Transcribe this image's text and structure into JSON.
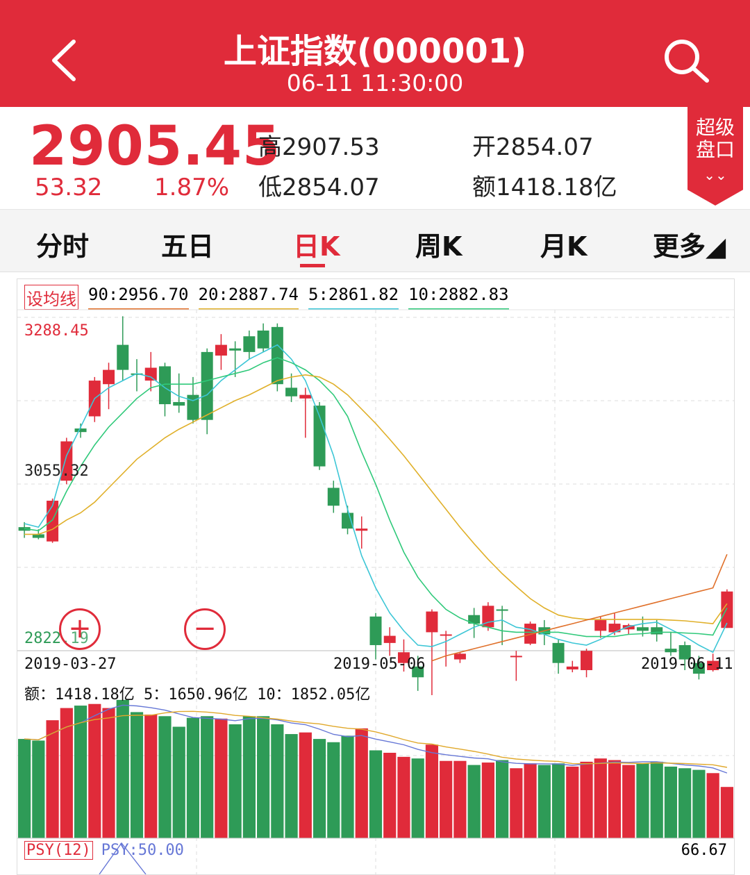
{
  "header": {
    "title": "上证指数(000001)",
    "subtitle": "06-11 11:30:00",
    "back_icon": "chevron-left-icon",
    "search_icon": "search-icon"
  },
  "quote": {
    "price": "2905.45",
    "change": "53.32",
    "change_pct": "1.87%",
    "high_label": "高",
    "high": "2907.53",
    "low_label": "低",
    "low": "2854.07",
    "open_label": "开",
    "open": "2854.07",
    "amount_label": "额",
    "amount": "1418.18亿",
    "badge_line1": "超级",
    "badge_line2": "盘口",
    "badge_arrow": "⌄⌄"
  },
  "tabs": [
    {
      "label": "分时"
    },
    {
      "label": "五日"
    },
    {
      "label": "日K"
    },
    {
      "label": "周K"
    },
    {
      "label": "月K"
    },
    {
      "label": "更多◢"
    }
  ],
  "active_tab": "日K",
  "chart": {
    "set_ma_label": "设均线",
    "ma": [
      {
        "label": "90:2956.70",
        "color": "#e0702a"
      },
      {
        "label": "20:2887.74",
        "color": "#e0b02a"
      },
      {
        "label": "5:2861.82",
        "color": "#3cc6d6"
      },
      {
        "label": "10:2882.83",
        "color": "#2fc97a"
      }
    ],
    "y_top": "3288.45",
    "y_mid": "3055.32",
    "y_bottom": "2822.19",
    "dates": [
      "2019-03-27",
      "2019-05-06",
      "2019-06-11"
    ],
    "volume_legend": "额：1418.18亿 5：1650.96亿 10：1852.05亿",
    "psy_label": "PSY(12)",
    "psy_value": "PSY:50.00",
    "psy_right": "66.67",
    "up_color": "#e02b3a",
    "down_color": "#2e9b57"
  },
  "chart_data": {
    "type": "candlestick",
    "y_range": [
      2822.19,
      3288.45
    ],
    "candles": [
      [
        2995,
        2990,
        3002,
        2980
      ],
      [
        2985,
        2980,
        2992,
        2978
      ],
      [
        2975,
        3032,
        3035,
        2973
      ],
      [
        3060,
        3115,
        3120,
        3055
      ],
      [
        3133,
        3128,
        3140,
        3120
      ],
      [
        3150,
        3200,
        3205,
        3142
      ],
      [
        3195,
        3215,
        3225,
        3160
      ],
      [
        3250,
        3215,
        3290,
        3200
      ],
      [
        3210,
        3208,
        3230,
        3185
      ],
      [
        3200,
        3218,
        3240,
        3185
      ],
      [
        3220,
        3167,
        3225,
        3150
      ],
      [
        3170,
        3165,
        3210,
        3155
      ],
      [
        3180,
        3145,
        3205,
        3140
      ],
      [
        3240,
        3145,
        3245,
        3125
      ],
      [
        3235,
        3250,
        3265,
        3215
      ],
      [
        3245,
        3242,
        3255,
        3205
      ],
      [
        3262,
        3240,
        3270,
        3230
      ],
      [
        3270,
        3245,
        3280,
        3240
      ],
      [
        3275,
        3195,
        3280,
        3185
      ],
      [
        3190,
        3178,
        3210,
        3170
      ],
      [
        3175,
        3180,
        3190,
        3120
      ],
      [
        3165,
        3080,
        3170,
        3075
      ],
      [
        3050,
        3025,
        3060,
        3015
      ],
      [
        3015,
        2993,
        3025,
        2985
      ],
      [
        2990,
        2993,
        3010,
        2965
      ],
      [
        2870,
        2830,
        2875,
        2810
      ],
      [
        2833,
        2843,
        2855,
        2815
      ],
      [
        2805,
        2820,
        2838,
        2793
      ],
      [
        2800,
        2785,
        2815,
        2766
      ],
      [
        2848,
        2877,
        2880,
        2760
      ],
      [
        2845,
        2845,
        2850,
        2800
      ],
      [
        2810,
        2818,
        2820,
        2805
      ],
      [
        2872,
        2860,
        2882,
        2840
      ],
      [
        2855,
        2885,
        2890,
        2850
      ],
      [
        2880,
        2878,
        2885,
        2830
      ],
      [
        2815,
        2815,
        2822,
        2780
      ],
      [
        2832,
        2860,
        2863,
        2830
      ],
      [
        2855,
        2845,
        2865,
        2830
      ],
      [
        2833,
        2805,
        2838,
        2790
      ],
      [
        2796,
        2800,
        2808,
        2792
      ],
      [
        2795,
        2822,
        2825,
        2785
      ],
      [
        2850,
        2865,
        2870,
        2840
      ],
      [
        2848,
        2860,
        2875,
        2844
      ],
      [
        2852,
        2858,
        2860,
        2845
      ],
      [
        2855,
        2850,
        2870,
        2842
      ],
      [
        2855,
        2845,
        2865,
        2835
      ],
      [
        2825,
        2820,
        2848,
        2815
      ],
      [
        2830,
        2810,
        2835,
        2795
      ],
      [
        2805,
        2790,
        2815,
        2782
      ],
      [
        2795,
        2808,
        2818,
        2793
      ],
      [
        2854,
        2905,
        2908,
        2854
      ]
    ],
    "volume": [
      122,
      120,
      145,
      160,
      163,
      165,
      160,
      170,
      155,
      152,
      150,
      137,
      148,
      150,
      147,
      140,
      150,
      150,
      140,
      128,
      130,
      122,
      118,
      126,
      135,
      108,
      105,
      100,
      98,
      115,
      95,
      95,
      90,
      93,
      96,
      86,
      92,
      90,
      92,
      88,
      94,
      98,
      96,
      90,
      92,
      94,
      88,
      86,
      84,
      80,
      63
    ],
    "ma": {
      "ma5": [
        3000,
        2995,
        3025,
        3095,
        3135,
        3175,
        3190,
        3200,
        3210,
        3205,
        3190,
        3178,
        3172,
        3180,
        3200,
        3215,
        3230,
        3240,
        3250,
        3230,
        3200,
        3150,
        3095,
        3020,
        2955,
        2910,
        2875,
        2850,
        2830,
        2828,
        2835,
        2845,
        2855,
        2862,
        2865,
        2855,
        2852,
        2845,
        2838,
        2833,
        2830,
        2838,
        2848,
        2856,
        2860,
        2862,
        2852,
        2842,
        2830,
        2820,
        2861
      ],
      "ma10": [
        2993,
        2990,
        3005,
        3045,
        3080,
        3110,
        3135,
        3155,
        3175,
        3190,
        3195,
        3195,
        3195,
        3200,
        3205,
        3210,
        3215,
        3225,
        3232,
        3225,
        3215,
        3200,
        3180,
        3150,
        3100,
        3055,
        3005,
        2960,
        2925,
        2900,
        2880,
        2868,
        2860,
        2855,
        2850,
        2848,
        2848,
        2848,
        2848,
        2845,
        2842,
        2842,
        2842,
        2845,
        2846,
        2848,
        2848,
        2847,
        2846,
        2844,
        2882
      ],
      "ma20": [
        2985,
        2985,
        2992,
        3005,
        3015,
        3030,
        3050,
        3070,
        3090,
        3105,
        3120,
        3132,
        3142,
        3152,
        3162,
        3172,
        3180,
        3190,
        3200,
        3205,
        3208,
        3205,
        3195,
        3180,
        3160,
        3140,
        3118,
        3095,
        3070,
        3045,
        3020,
        2995,
        2972,
        2950,
        2930,
        2912,
        2895,
        2882,
        2872,
        2868,
        2866,
        2866,
        2866,
        2866,
        2866,
        2866,
        2865,
        2864,
        2862,
        2860,
        2888
      ],
      "ma90": [
        null,
        null,
        null,
        null,
        null,
        null,
        null,
        null,
        null,
        null,
        null,
        null,
        null,
        null,
        null,
        null,
        null,
        null,
        null,
        null,
        null,
        null,
        null,
        null,
        null,
        null,
        null,
        null,
        null,
        2808,
        2815,
        2820,
        2825,
        2830,
        2835,
        2840,
        2845,
        2850,
        2855,
        2860,
        2865,
        2870,
        2875,
        2880,
        2885,
        2890,
        2895,
        2900,
        2905,
        2910,
        2957
      ]
    }
  }
}
